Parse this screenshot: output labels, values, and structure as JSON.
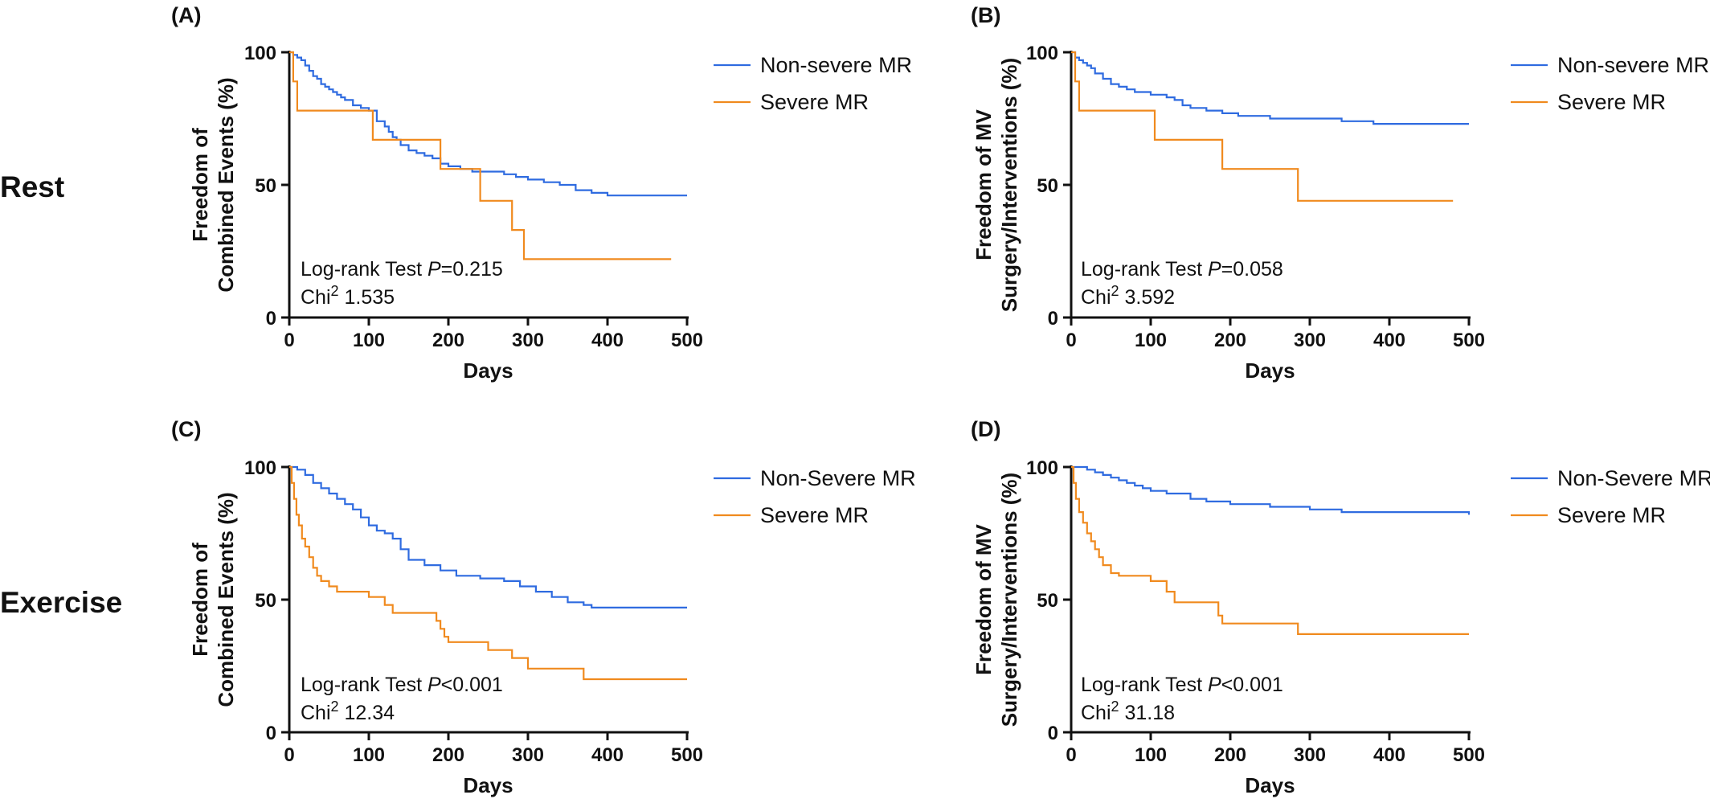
{
  "row_labels": [
    "Rest",
    "Exercise"
  ],
  "colors": {
    "non_severe": "#2f6be0",
    "severe": "#f08a1e"
  },
  "chart_data": [
    {
      "type": "line",
      "panel": "(A)",
      "row": "Rest",
      "xlabel": "Days",
      "ylabel_lines": [
        "Freedom of",
        "Combined Events (%)"
      ],
      "xlim": [
        0,
        500
      ],
      "ylim": [
        0,
        100
      ],
      "xticks": [
        0,
        100,
        200,
        300,
        400,
        500
      ],
      "yticks": [
        0,
        50,
        100
      ],
      "legend": "right",
      "stat_prefix": "Log-rank Test ",
      "stat_p": "P",
      "stat_value": "=0.215",
      "chi_prefix": "Chi",
      "chi_sup": "2",
      "chi_value": " 1.535",
      "series": [
        {
          "name": "Non-severe MR",
          "color": "#2f6be0",
          "x": [
            0,
            5,
            10,
            15,
            20,
            25,
            30,
            35,
            40,
            45,
            50,
            55,
            60,
            65,
            70,
            80,
            90,
            100,
            110,
            120,
            125,
            130,
            135,
            140,
            150,
            160,
            170,
            180,
            190,
            200,
            215,
            230,
            250,
            270,
            285,
            300,
            320,
            340,
            360,
            380,
            400,
            500
          ],
          "y": [
            100,
            99,
            98,
            97,
            95,
            93,
            91,
            90,
            88,
            87,
            86,
            85,
            84,
            83,
            82,
            80,
            79,
            78,
            74,
            72,
            70,
            68,
            67,
            65,
            63,
            62,
            61,
            60,
            58,
            57,
            56,
            55,
            55,
            54,
            53,
            52,
            51,
            50,
            48,
            47,
            46,
            46
          ]
        },
        {
          "name": "Severe MR",
          "color": "#f08a1e",
          "x": [
            0,
            5,
            10,
            105,
            105,
            190,
            190,
            240,
            240,
            280,
            280,
            295,
            295,
            480
          ],
          "y": [
            100,
            89,
            78,
            78,
            67,
            67,
            56,
            56,
            44,
            44,
            33,
            33,
            22,
            22
          ]
        }
      ]
    },
    {
      "type": "line",
      "panel": "(B)",
      "row": "Rest",
      "xlabel": "Days",
      "ylabel_lines": [
        "Freedom of MV",
        "Surgery/Interventions (%)"
      ],
      "xlim": [
        0,
        500
      ],
      "ylim": [
        0,
        100
      ],
      "xticks": [
        0,
        100,
        200,
        300,
        400,
        500
      ],
      "yticks": [
        0,
        50,
        100
      ],
      "legend": "right",
      "stat_prefix": "Log-rank Test ",
      "stat_p": "P",
      "stat_value": "=0.058",
      "chi_prefix": "Chi",
      "chi_sup": "2",
      "chi_value": " 3.592",
      "series": [
        {
          "name": "Non-severe MR",
          "color": "#2f6be0",
          "x": [
            0,
            5,
            10,
            15,
            20,
            25,
            30,
            40,
            50,
            60,
            70,
            80,
            100,
            120,
            130,
            140,
            150,
            170,
            190,
            210,
            250,
            300,
            340,
            380,
            500
          ],
          "y": [
            100,
            98,
            97,
            96,
            95,
            94,
            92,
            90,
            88,
            87,
            86,
            85,
            84,
            83,
            82,
            80,
            79,
            78,
            77,
            76,
            75,
            75,
            74,
            73,
            73
          ]
        },
        {
          "name": "Severe MR",
          "color": "#f08a1e",
          "x": [
            0,
            5,
            10,
            105,
            105,
            190,
            190,
            285,
            285,
            480
          ],
          "y": [
            100,
            89,
            78,
            78,
            67,
            67,
            56,
            56,
            44,
            44
          ]
        }
      ]
    },
    {
      "type": "line",
      "panel": "(C)",
      "row": "Exercise",
      "xlabel": "Days",
      "ylabel_lines": [
        "Freedom of",
        "Combined Events (%)"
      ],
      "xlim": [
        0,
        500
      ],
      "ylim": [
        0,
        100
      ],
      "xticks": [
        0,
        100,
        200,
        300,
        400,
        500
      ],
      "yticks": [
        0,
        50,
        100
      ],
      "legend": "right",
      "stat_prefix": "Log-rank Test ",
      "stat_p": "P",
      "stat_value": "<0.001",
      "chi_prefix": "Chi",
      "chi_sup": "2",
      "chi_value": " 12.34",
      "series": [
        {
          "name": "Non-Severe MR",
          "color": "#2f6be0",
          "x": [
            0,
            10,
            20,
            30,
            40,
            50,
            60,
            70,
            80,
            90,
            100,
            110,
            120,
            130,
            140,
            150,
            170,
            190,
            210,
            240,
            270,
            290,
            310,
            330,
            350,
            370,
            380,
            500
          ],
          "y": [
            100,
            99,
            97,
            94,
            92,
            90,
            88,
            86,
            84,
            81,
            78,
            76,
            75,
            73,
            69,
            65,
            63,
            61,
            59,
            58,
            57,
            55,
            53,
            51,
            49,
            48,
            47,
            47
          ]
        },
        {
          "name": "Severe MR",
          "color": "#f08a1e",
          "x": [
            0,
            3,
            6,
            9,
            12,
            16,
            20,
            25,
            30,
            35,
            40,
            50,
            60,
            100,
            100,
            120,
            120,
            130,
            130,
            185,
            185,
            190,
            190,
            195,
            195,
            200,
            200,
            250,
            250,
            280,
            280,
            300,
            300,
            370,
            370,
            500
          ],
          "y": [
            100,
            94,
            88,
            82,
            78,
            73,
            70,
            66,
            62,
            59,
            57,
            55,
            53,
            53,
            51,
            51,
            48,
            48,
            45,
            45,
            42,
            42,
            39,
            39,
            36,
            36,
            34,
            34,
            31,
            31,
            28,
            28,
            24,
            24,
            20,
            20
          ]
        }
      ]
    },
    {
      "type": "line",
      "panel": "(D)",
      "row": "Exercise",
      "xlabel": "Days",
      "ylabel_lines": [
        "Freedom of MV",
        "Surgery/Interventions (%)"
      ],
      "xlim": [
        0,
        500
      ],
      "ylim": [
        0,
        100
      ],
      "xticks": [
        0,
        100,
        200,
        300,
        400,
        500
      ],
      "yticks": [
        0,
        50,
        100
      ],
      "legend": "right",
      "stat_prefix": "Log-rank Test ",
      "stat_p": "P",
      "stat_value": "<0.001",
      "chi_prefix": "Chi",
      "chi_sup": "2",
      "chi_value": " 31.18",
      "series": [
        {
          "name": "Non-Severe MR",
          "color": "#2f6be0",
          "x": [
            0,
            20,
            30,
            40,
            50,
            60,
            70,
            80,
            90,
            100,
            120,
            150,
            170,
            200,
            250,
            300,
            340,
            500
          ],
          "y": [
            100,
            99,
            98,
            97,
            96,
            95,
            94,
            93,
            92,
            91,
            90,
            88,
            87,
            86,
            85,
            84,
            83,
            82
          ]
        },
        {
          "name": "Severe MR",
          "color": "#f08a1e",
          "x": [
            0,
            3,
            6,
            10,
            15,
            20,
            25,
            30,
            35,
            40,
            50,
            60,
            100,
            100,
            120,
            120,
            130,
            130,
            185,
            185,
            190,
            190,
            285,
            285,
            500
          ],
          "y": [
            100,
            94,
            88,
            83,
            79,
            75,
            72,
            69,
            66,
            63,
            60,
            59,
            59,
            57,
            57,
            53,
            53,
            49,
            49,
            44,
            44,
            41,
            41,
            37,
            37
          ]
        }
      ]
    }
  ]
}
